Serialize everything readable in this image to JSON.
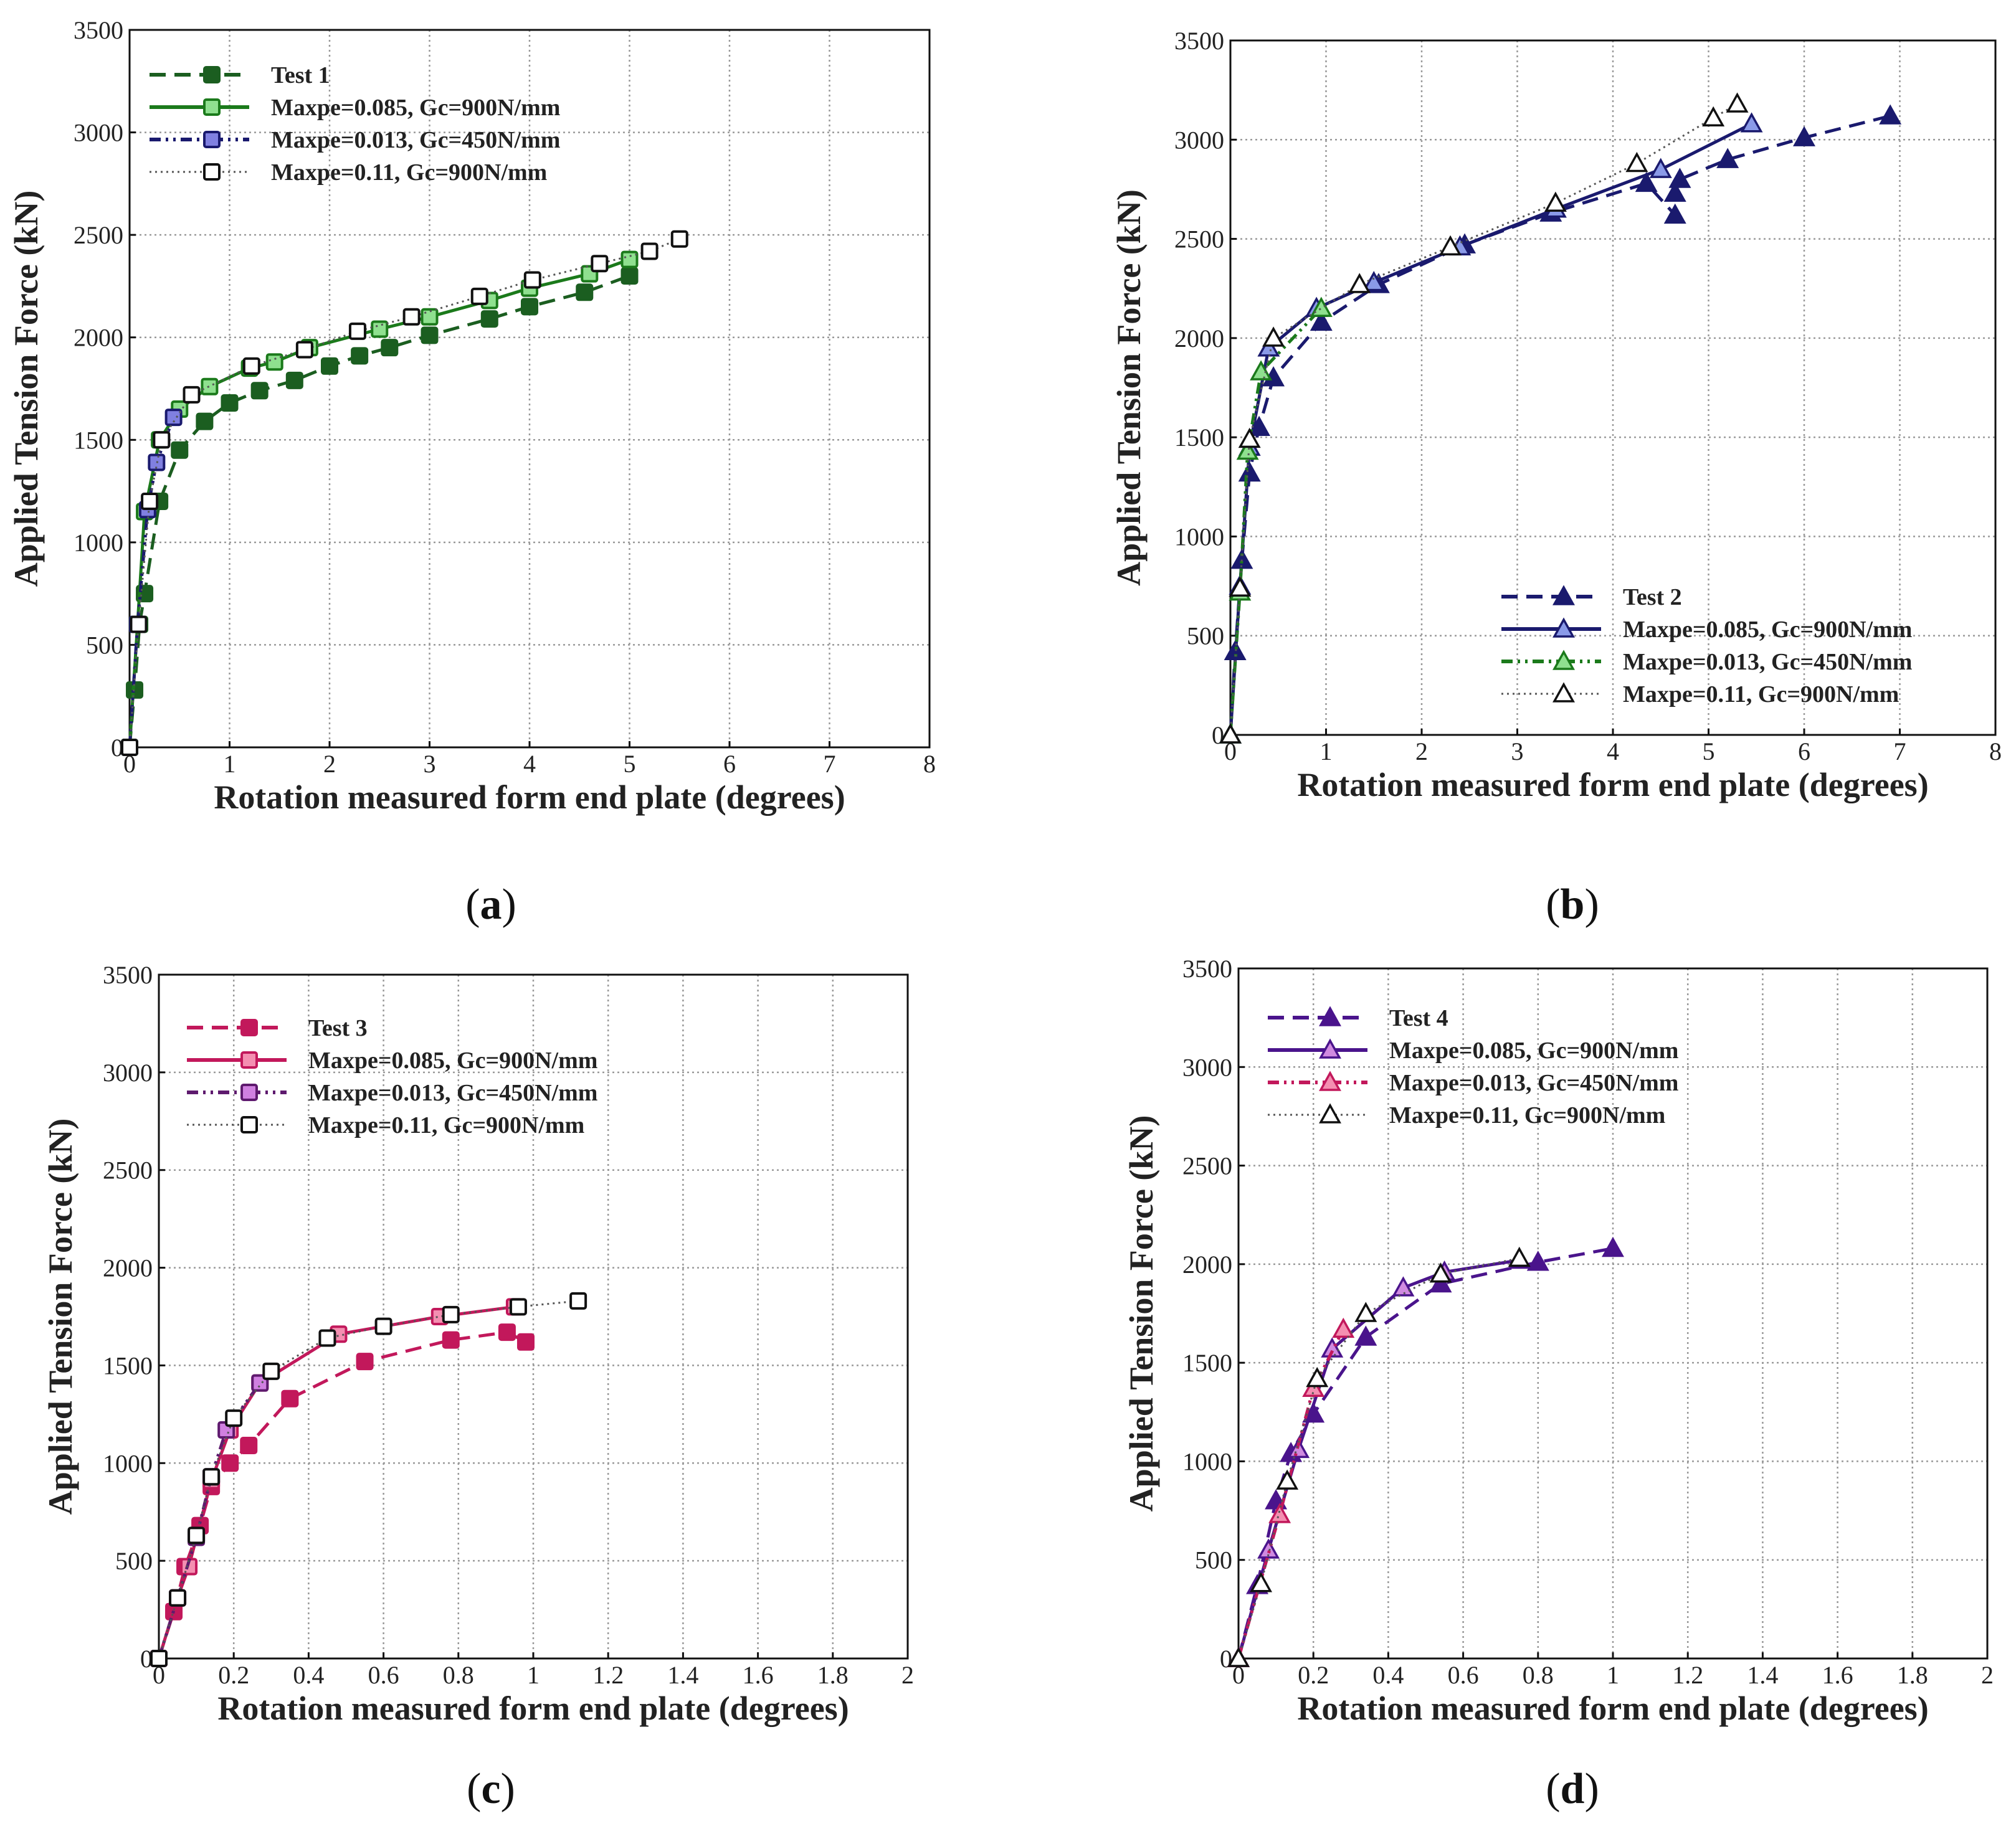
{
  "chart_data": [
    {
      "type": "line",
      "panel_label": "a",
      "xlabel": "Rotation measured form end plate (degrees)",
      "ylabel": "Applied Tension Force (kN)",
      "xlim": [
        0,
        8
      ],
      "ylim": [
        0,
        3500
      ],
      "xticks": [
        0,
        1,
        2,
        3,
        4,
        5,
        6,
        7,
        8
      ],
      "yticks": [
        0,
        500,
        1000,
        1500,
        2000,
        2500,
        3000,
        3500
      ],
      "legend_position": "top-left",
      "series": [
        {
          "name": "Test 1",
          "marker": "square",
          "color": "#1b5e20",
          "fill": "#1b5e20",
          "style": "dashed",
          "x": [
            0,
            0.05,
            0.1,
            0.15,
            0.3,
            0.5,
            0.75,
            1.0,
            1.3,
            1.65,
            2.0,
            2.3,
            2.6,
            3.0,
            3.6,
            4.0,
            4.55,
            5.0
          ],
          "y": [
            0,
            280,
            600,
            750,
            1200,
            1450,
            1590,
            1680,
            1740,
            1790,
            1860,
            1910,
            1950,
            2010,
            2090,
            2150,
            2220,
            2300
          ]
        },
        {
          "name": "Maxpe=0.085, Gc=900N/mm",
          "marker": "square",
          "color": "#1b7a1b",
          "fill": "#8fe08f",
          "style": "solid",
          "x": [
            0,
            0.08,
            0.15,
            0.3,
            0.5,
            0.8,
            1.2,
            1.45,
            1.8,
            2.5,
            3.0,
            3.6,
            4.0,
            4.6,
            5.0
          ],
          "y": [
            0,
            600,
            1150,
            1500,
            1650,
            1760,
            1850,
            1880,
            1950,
            2040,
            2100,
            2180,
            2240,
            2310,
            2380
          ]
        },
        {
          "name": "Maxpe=0.013, Gc=450N/mm",
          "marker": "square",
          "color": "#1a1a6e",
          "fill": "#8080e0",
          "style": "dashdotdot",
          "x": [
            0,
            0.08,
            0.18,
            0.27,
            0.44
          ],
          "y": [
            0,
            600,
            1160,
            1390,
            1610
          ]
        },
        {
          "name": "Maxpe=0.11, Gc=900N/mm",
          "marker": "square",
          "color": "#555555",
          "fill": "#ffffff",
          "style": "dotted",
          "x": [
            0,
            0.09,
            0.2,
            0.32,
            0.62,
            1.22,
            1.75,
            2.28,
            2.82,
            3.5,
            4.03,
            4.7,
            5.2,
            5.5
          ],
          "y": [
            0,
            600,
            1200,
            1500,
            1720,
            1860,
            1940,
            2030,
            2100,
            2200,
            2280,
            2360,
            2420,
            2480
          ]
        }
      ]
    },
    {
      "type": "line",
      "panel_label": "b",
      "xlabel": "Rotation measured form end plate (degrees)",
      "ylabel": "Applied Tension Force (kN)",
      "xlim": [
        0,
        8
      ],
      "ylim": [
        0,
        3500
      ],
      "xticks": [
        0,
        1,
        2,
        3,
        4,
        5,
        6,
        7,
        8
      ],
      "yticks": [
        0,
        500,
        1000,
        1500,
        2000,
        2500,
        3000,
        3500
      ],
      "legend_position": "bottom-right",
      "series": [
        {
          "name": "Test 2",
          "marker": "triangle",
          "color": "#1a1a6e",
          "fill": "#1a1a6e",
          "style": "dashed",
          "x": [
            0,
            0.05,
            0.12,
            0.2,
            0.3,
            0.45,
            0.95,
            1.55,
            2.45,
            3.35,
            4.35,
            4.65,
            4.65,
            4.7,
            5.2,
            6.0,
            6.9
          ],
          "y": [
            0,
            420,
            880,
            1320,
            1550,
            1800,
            2080,
            2270,
            2470,
            2630,
            2780,
            2620,
            2730,
            2800,
            2900,
            3010,
            3120
          ]
        },
        {
          "name": "Maxpe=0.085, Gc=900N/mm",
          "marker": "triangle",
          "color": "#1a1a6e",
          "fill": "#8a9ae8",
          "style": "solid",
          "x": [
            0,
            0.1,
            0.2,
            0.4,
            0.9,
            1.5,
            2.4,
            3.4,
            4.5,
            5.45
          ],
          "y": [
            0,
            750,
            1450,
            1950,
            2150,
            2280,
            2460,
            2650,
            2850,
            3080
          ]
        },
        {
          "name": "Maxpe=0.013, Gc=450N/mm",
          "marker": "triangle",
          "color": "#1b7a1b",
          "fill": "#8fe08f",
          "style": "dashdotdot",
          "x": [
            0,
            0.1,
            0.18,
            0.32,
            0.95
          ],
          "y": [
            0,
            720,
            1430,
            1830,
            2150
          ]
        },
        {
          "name": "Maxpe=0.11, Gc=900N/mm",
          "marker": "triangle",
          "color": "#555555",
          "fill": "#ffffff",
          "style": "dotted",
          "x": [
            0,
            0.1,
            0.2,
            0.45,
            1.35,
            2.3,
            3.4,
            4.25,
            5.05,
            5.3
          ],
          "y": [
            0,
            740,
            1490,
            2000,
            2270,
            2460,
            2680,
            2880,
            3110,
            3180
          ]
        }
      ]
    },
    {
      "type": "line",
      "panel_label": "c",
      "xlabel": "Rotation measured form end plate (degrees)",
      "ylabel": "Applied Tension Force (kN)",
      "xlim": [
        0,
        2
      ],
      "ylim": [
        0,
        3500
      ],
      "xticks": [
        0,
        0.2,
        0.4,
        0.6,
        0.8,
        1,
        1.2,
        1.4,
        1.6,
        1.8,
        2
      ],
      "yticks": [
        0,
        500,
        1000,
        1500,
        2000,
        2500,
        3000,
        3500
      ],
      "legend_position": "top-left",
      "series": [
        {
          "name": "Test 3",
          "marker": "square",
          "color": "#c2185b",
          "fill": "#c2185b",
          "style": "dashed",
          "x": [
            0,
            0.04,
            0.07,
            0.11,
            0.14,
            0.19,
            0.24,
            0.35,
            0.55,
            0.78,
            0.93,
            0.98
          ],
          "y": [
            0,
            240,
            470,
            680,
            880,
            1000,
            1090,
            1330,
            1520,
            1630,
            1670,
            1620
          ]
        },
        {
          "name": "Maxpe=0.085, Gc=900N/mm",
          "marker": "square",
          "color": "#c2185b",
          "fill": "#f48fb1",
          "style": "solid",
          "x": [
            0,
            0.05,
            0.08,
            0.14,
            0.19,
            0.27,
            0.48,
            0.75,
            0.95
          ],
          "y": [
            0,
            310,
            470,
            910,
            1170,
            1410,
            1660,
            1750,
            1800
          ]
        },
        {
          "name": "Maxpe=0.013, Gc=450N/mm",
          "marker": "square",
          "color": "#5e1a6e",
          "fill": "#d080e0",
          "style": "dashdotdot",
          "x": [
            0,
            0.05,
            0.1,
            0.14,
            0.18,
            0.27
          ],
          "y": [
            0,
            310,
            620,
            930,
            1170,
            1410
          ]
        },
        {
          "name": "Maxpe=0.11, Gc=900N/mm",
          "marker": "square",
          "color": "#555555",
          "fill": "#ffffff",
          "style": "dotted",
          "x": [
            0,
            0.05,
            0.1,
            0.14,
            0.2,
            0.3,
            0.45,
            0.6,
            0.78,
            0.96,
            1.12
          ],
          "y": [
            0,
            310,
            630,
            930,
            1230,
            1470,
            1640,
            1700,
            1760,
            1800,
            1830
          ]
        }
      ]
    },
    {
      "type": "line",
      "panel_label": "d",
      "xlabel": "Rotation measured form end plate (degrees)",
      "ylabel": "Applied Tension Force (kN)",
      "xlim": [
        0,
        2
      ],
      "ylim": [
        0,
        3500
      ],
      "xticks": [
        0,
        0.2,
        0.4,
        0.6,
        0.8,
        1,
        1.2,
        1.4,
        1.6,
        1.8,
        2
      ],
      "yticks": [
        0,
        500,
        1000,
        1500,
        2000,
        2500,
        3000,
        3500
      ],
      "legend_position": "top-left",
      "series": [
        {
          "name": "Test 4",
          "marker": "triangle",
          "color": "#4a148c",
          "fill": "#4a148c",
          "style": "dashed",
          "x": [
            0,
            0.05,
            0.1,
            0.14,
            0.2,
            0.34,
            0.54,
            0.8,
            1.0
          ],
          "y": [
            0,
            370,
            800,
            1040,
            1240,
            1630,
            1900,
            2010,
            2080
          ]
        },
        {
          "name": "Maxpe=0.085, Gc=900N/mm",
          "marker": "triangle",
          "color": "#4a148c",
          "fill": "#d08ae0",
          "style": "solid",
          "x": [
            0,
            0.08,
            0.16,
            0.25,
            0.44,
            0.55,
            0.75
          ],
          "y": [
            0,
            550,
            1060,
            1570,
            1880,
            1960,
            2020
          ]
        },
        {
          "name": "Maxpe=0.013, Gc=450N/mm",
          "marker": "triangle",
          "color": "#c2185b",
          "fill": "#f48fb1",
          "style": "dashdotdot",
          "x": [
            0,
            0.11,
            0.2,
            0.28
          ],
          "y": [
            0,
            730,
            1370,
            1670
          ]
        },
        {
          "name": "Maxpe=0.11, Gc=900N/mm",
          "marker": "triangle",
          "color": "#555555",
          "fill": "#ffffff",
          "style": "dotted",
          "x": [
            0,
            0.06,
            0.13,
            0.21,
            0.34,
            0.54,
            0.75
          ],
          "y": [
            0,
            380,
            900,
            1420,
            1750,
            1950,
            2030
          ]
        }
      ]
    }
  ]
}
